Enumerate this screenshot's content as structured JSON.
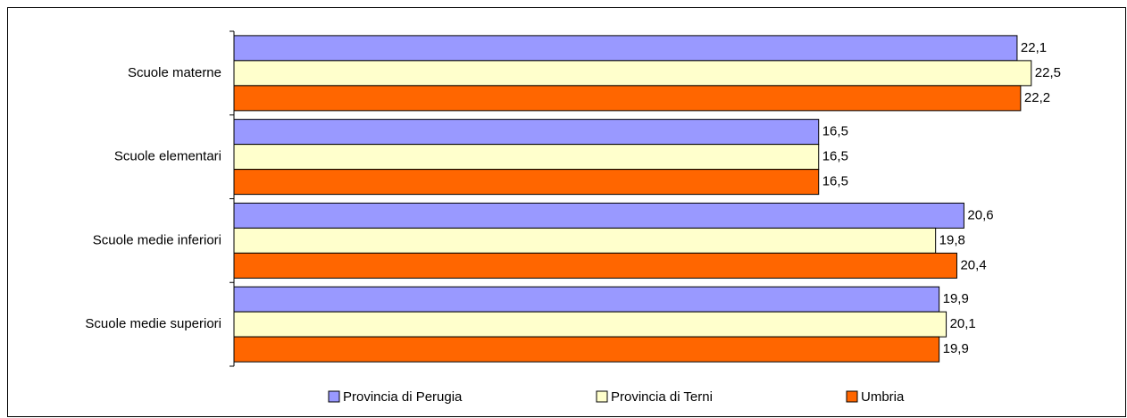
{
  "chart_data": {
    "type": "hbar",
    "categories": [
      "Scuole materne",
      "Scuole elementari",
      "Scuole medie inferiori",
      "Scuole medie superiori"
    ],
    "series": [
      {
        "name": "Provincia di Perugia",
        "color": "#9999ff",
        "values": [
          22.1,
          16.5,
          20.6,
          19.9
        ],
        "value_labels": [
          "22,1",
          "16,5",
          "20,6",
          "19,9"
        ]
      },
      {
        "name": "Provincia di Terni",
        "color": "#ffffcc",
        "values": [
          22.5,
          16.5,
          19.8,
          20.1
        ],
        "value_labels": [
          "22,5",
          "16,5",
          "19,8",
          "20,1"
        ]
      },
      {
        "name": "Umbria",
        "color": "#ff6600",
        "values": [
          22.2,
          16.5,
          20.4,
          19.9
        ],
        "value_labels": [
          "22,2",
          "16,5",
          "20,4",
          "19,9"
        ]
      }
    ],
    "xlim": [
      0,
      25
    ],
    "legend": "bottom"
  }
}
